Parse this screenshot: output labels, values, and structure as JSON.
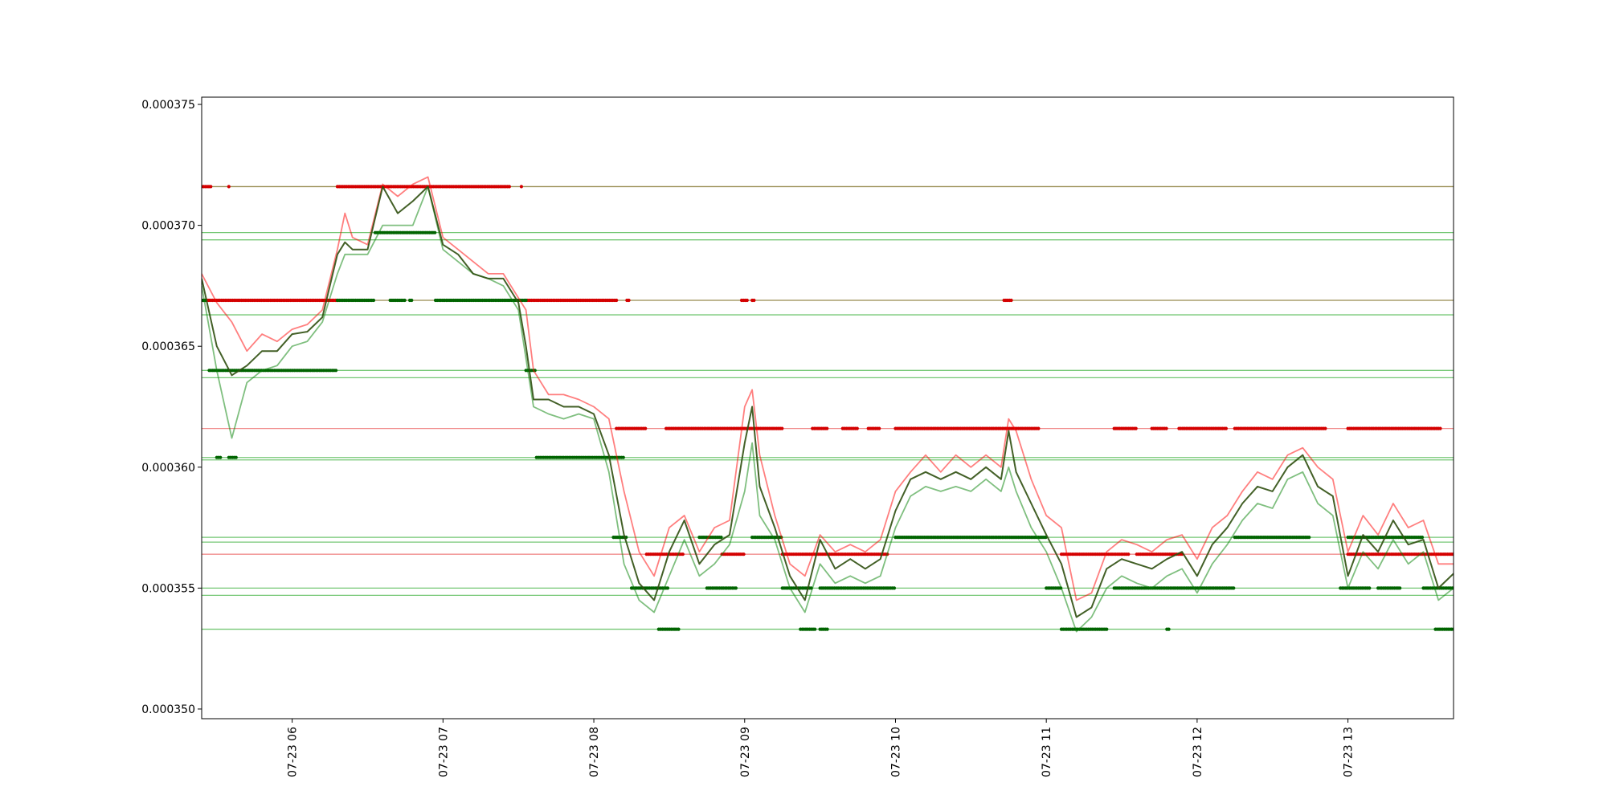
{
  "chart_data": {
    "type": "line",
    "title": "",
    "xlabel": "",
    "ylabel": "",
    "xlim": [
      5.4,
      13.7
    ],
    "ylim": [
      0.0003496,
      0.0003753
    ],
    "grid": false,
    "x_ticks": [
      {
        "value": 6,
        "label": "07-23 06"
      },
      {
        "value": 7,
        "label": "07-23 07"
      },
      {
        "value": 8,
        "label": "07-23 08"
      },
      {
        "value": 9,
        "label": "07-23 09"
      },
      {
        "value": 10,
        "label": "07-23 10"
      },
      {
        "value": 11,
        "label": "07-23 11"
      },
      {
        "value": 12,
        "label": "07-23 12"
      },
      {
        "value": 13,
        "label": "07-23 13"
      }
    ],
    "y_ticks": [
      {
        "value": 0.00035,
        "label": "0.000350"
      },
      {
        "value": 0.000355,
        "label": "0.000355"
      },
      {
        "value": 0.00036,
        "label": "0.000360"
      },
      {
        "value": 0.000365,
        "label": "0.000365"
      },
      {
        "value": 0.00037,
        "label": "0.000370"
      },
      {
        "value": 0.000375,
        "label": "0.000375"
      }
    ],
    "colors": {
      "red_line": "#ff0000",
      "green_line": "#008000",
      "close_line": "#2f4f10",
      "red_marker": "#d40000",
      "green_marker": "#006400",
      "olive_hline": "#8b7d3a",
      "red_hline": "#f08080",
      "green_hline": "#66c266"
    },
    "horizontal_levels": [
      {
        "y": 0.0003716,
        "color": "olive"
      },
      {
        "y": 0.0003669,
        "color": "olive"
      },
      {
        "y": 0.0003697,
        "color": "green"
      },
      {
        "y": 0.0003694,
        "color": "green"
      },
      {
        "y": 0.0003663,
        "color": "green"
      },
      {
        "y": 0.000364,
        "color": "green"
      },
      {
        "y": 0.0003637,
        "color": "green"
      },
      {
        "y": 0.0003616,
        "color": "red"
      },
      {
        "y": 0.0003604,
        "color": "green"
      },
      {
        "y": 0.0003603,
        "color": "green"
      },
      {
        "y": 0.0003571,
        "color": "green"
      },
      {
        "y": 0.0003569,
        "color": "green"
      },
      {
        "y": 0.0003564,
        "color": "red"
      },
      {
        "y": 0.000355,
        "color": "green"
      },
      {
        "y": 0.0003547,
        "color": "green"
      },
      {
        "y": 0.0003533,
        "color": "green"
      }
    ],
    "series": [
      {
        "role": "high",
        "color": "red",
        "x": [
          5.4,
          5.5,
          5.6,
          5.7,
          5.8,
          5.9,
          6.0,
          6.1,
          6.2,
          6.3,
          6.35,
          6.4,
          6.5,
          6.6,
          6.7,
          6.8,
          6.9,
          7.0,
          7.1,
          7.2,
          7.3,
          7.4,
          7.5,
          7.55,
          7.6,
          7.7,
          7.8,
          7.9,
          8.0,
          8.1,
          8.2,
          8.3,
          8.4,
          8.5,
          8.6,
          8.7,
          8.8,
          8.9,
          9.0,
          9.05,
          9.1,
          9.2,
          9.3,
          9.4,
          9.5,
          9.6,
          9.7,
          9.8,
          9.9,
          10.0,
          10.1,
          10.2,
          10.3,
          10.4,
          10.5,
          10.6,
          10.7,
          10.75,
          10.8,
          10.9,
          11.0,
          11.1,
          11.2,
          11.3,
          11.4,
          11.5,
          11.6,
          11.7,
          11.8,
          11.9,
          12.0,
          12.1,
          12.2,
          12.3,
          12.4,
          12.5,
          12.6,
          12.7,
          12.8,
          12.9,
          13.0,
          13.1,
          13.2,
          13.3,
          13.4,
          13.5,
          13.6,
          13.7
        ],
        "y": [
          0.000368,
          0.0003668,
          0.000366,
          0.0003648,
          0.0003655,
          0.0003652,
          0.0003657,
          0.0003659,
          0.0003665,
          0.000369,
          0.0003705,
          0.0003695,
          0.0003692,
          0.0003717,
          0.0003712,
          0.0003717,
          0.000372,
          0.0003695,
          0.000369,
          0.0003685,
          0.000368,
          0.000368,
          0.000367,
          0.0003665,
          0.000364,
          0.000363,
          0.000363,
          0.0003628,
          0.0003625,
          0.000362,
          0.000359,
          0.0003565,
          0.0003555,
          0.0003575,
          0.000358,
          0.0003565,
          0.0003575,
          0.0003578,
          0.0003625,
          0.0003632,
          0.0003605,
          0.000358,
          0.000356,
          0.0003555,
          0.0003572,
          0.0003565,
          0.0003568,
          0.0003565,
          0.000357,
          0.000359,
          0.0003598,
          0.0003605,
          0.0003598,
          0.0003605,
          0.00036,
          0.0003605,
          0.00036,
          0.000362,
          0.0003615,
          0.0003595,
          0.000358,
          0.0003575,
          0.0003545,
          0.0003548,
          0.0003565,
          0.000357,
          0.0003568,
          0.0003565,
          0.000357,
          0.0003572,
          0.0003562,
          0.0003575,
          0.000358,
          0.000359,
          0.0003598,
          0.0003595,
          0.0003605,
          0.0003608,
          0.00036,
          0.0003595,
          0.0003565,
          0.000358,
          0.0003572,
          0.0003585,
          0.0003575,
          0.0003578,
          0.000356,
          0.000356
        ]
      },
      {
        "role": "low",
        "color": "green",
        "x": [
          5.4,
          5.5,
          5.6,
          5.7,
          5.8,
          5.9,
          6.0,
          6.1,
          6.2,
          6.3,
          6.35,
          6.4,
          6.5,
          6.6,
          6.7,
          6.8,
          6.9,
          7.0,
          7.1,
          7.2,
          7.3,
          7.4,
          7.5,
          7.55,
          7.6,
          7.7,
          7.8,
          7.9,
          8.0,
          8.1,
          8.2,
          8.3,
          8.4,
          8.5,
          8.6,
          8.7,
          8.8,
          8.9,
          9.0,
          9.05,
          9.1,
          9.2,
          9.3,
          9.4,
          9.5,
          9.6,
          9.7,
          9.8,
          9.9,
          10.0,
          10.1,
          10.2,
          10.3,
          10.4,
          10.5,
          10.6,
          10.7,
          10.75,
          10.8,
          10.9,
          11.0,
          11.1,
          11.2,
          11.3,
          11.4,
          11.5,
          11.6,
          11.7,
          11.8,
          11.9,
          12.0,
          12.1,
          12.2,
          12.3,
          12.4,
          12.5,
          12.6,
          12.7,
          12.8,
          12.9,
          13.0,
          13.1,
          13.2,
          13.3,
          13.4,
          13.5,
          13.6,
          13.7
        ],
        "y": [
          0.0003675,
          0.000364,
          0.0003612,
          0.0003635,
          0.000364,
          0.0003642,
          0.000365,
          0.0003652,
          0.000366,
          0.000368,
          0.0003688,
          0.0003688,
          0.0003688,
          0.00037,
          0.00037,
          0.00037,
          0.0003716,
          0.000369,
          0.0003685,
          0.000368,
          0.0003678,
          0.0003675,
          0.0003665,
          0.0003645,
          0.0003625,
          0.0003622,
          0.000362,
          0.0003622,
          0.000362,
          0.0003598,
          0.000356,
          0.0003545,
          0.000354,
          0.0003555,
          0.000357,
          0.0003555,
          0.000356,
          0.0003568,
          0.000359,
          0.000361,
          0.000358,
          0.000357,
          0.000355,
          0.000354,
          0.000356,
          0.0003552,
          0.0003555,
          0.0003552,
          0.0003555,
          0.0003575,
          0.0003588,
          0.0003592,
          0.000359,
          0.0003592,
          0.000359,
          0.0003595,
          0.000359,
          0.00036,
          0.000359,
          0.0003575,
          0.0003565,
          0.000355,
          0.0003532,
          0.0003538,
          0.000355,
          0.0003555,
          0.0003552,
          0.000355,
          0.0003555,
          0.0003558,
          0.0003548,
          0.000356,
          0.0003568,
          0.0003578,
          0.0003585,
          0.0003583,
          0.0003595,
          0.0003598,
          0.0003585,
          0.000358,
          0.000355,
          0.0003565,
          0.0003558,
          0.000357,
          0.000356,
          0.0003565,
          0.0003545,
          0.000355
        ]
      },
      {
        "role": "close",
        "color": "dark",
        "x": [
          5.4,
          5.5,
          5.6,
          5.7,
          5.8,
          5.9,
          6.0,
          6.1,
          6.2,
          6.3,
          6.35,
          6.4,
          6.5,
          6.6,
          6.7,
          6.8,
          6.9,
          7.0,
          7.1,
          7.2,
          7.3,
          7.4,
          7.5,
          7.55,
          7.6,
          7.7,
          7.8,
          7.9,
          8.0,
          8.1,
          8.2,
          8.3,
          8.4,
          8.5,
          8.6,
          8.7,
          8.8,
          8.9,
          9.0,
          9.05,
          9.1,
          9.2,
          9.3,
          9.4,
          9.5,
          9.6,
          9.7,
          9.8,
          9.9,
          10.0,
          10.1,
          10.2,
          10.3,
          10.4,
          10.5,
          10.6,
          10.7,
          10.75,
          10.8,
          10.9,
          11.0,
          11.1,
          11.2,
          11.3,
          11.4,
          11.5,
          11.6,
          11.7,
          11.8,
          11.9,
          12.0,
          12.1,
          12.2,
          12.3,
          12.4,
          12.5,
          12.6,
          12.7,
          12.8,
          12.9,
          13.0,
          13.1,
          13.2,
          13.3,
          13.4,
          13.5,
          13.6,
          13.7
        ],
        "y": [
          0.0003678,
          0.000365,
          0.0003638,
          0.0003642,
          0.0003648,
          0.0003648,
          0.0003655,
          0.0003656,
          0.0003662,
          0.0003688,
          0.0003693,
          0.000369,
          0.000369,
          0.0003716,
          0.0003705,
          0.000371,
          0.0003716,
          0.0003692,
          0.0003688,
          0.000368,
          0.0003678,
          0.0003678,
          0.0003668,
          0.000365,
          0.0003628,
          0.0003628,
          0.0003625,
          0.0003625,
          0.0003622,
          0.0003605,
          0.0003572,
          0.0003552,
          0.0003545,
          0.0003565,
          0.0003578,
          0.000356,
          0.0003568,
          0.0003572,
          0.000361,
          0.0003625,
          0.0003592,
          0.0003575,
          0.0003555,
          0.0003545,
          0.000357,
          0.0003558,
          0.0003562,
          0.0003558,
          0.0003562,
          0.0003582,
          0.0003595,
          0.0003598,
          0.0003595,
          0.0003598,
          0.0003595,
          0.00036,
          0.0003595,
          0.0003615,
          0.0003598,
          0.0003585,
          0.0003572,
          0.000356,
          0.0003538,
          0.0003542,
          0.0003558,
          0.0003562,
          0.000356,
          0.0003558,
          0.0003562,
          0.0003565,
          0.0003555,
          0.0003568,
          0.0003575,
          0.0003585,
          0.0003592,
          0.000359,
          0.00036,
          0.0003605,
          0.0003592,
          0.0003588,
          0.0003555,
          0.0003572,
          0.0003565,
          0.0003578,
          0.0003568,
          0.000357,
          0.000355,
          0.0003556
        ]
      }
    ],
    "marker_bands": [
      {
        "color": "red",
        "y": 0.0003716,
        "segments": [
          [
            5.4,
            5.47
          ],
          [
            5.58,
            5.59
          ],
          [
            6.3,
            7.45
          ],
          [
            7.52,
            7.53
          ]
        ]
      },
      {
        "color": "red",
        "y": 0.0003669,
        "segments": [
          [
            5.4,
            6.3
          ],
          [
            7.55,
            8.15
          ],
          [
            8.22,
            8.24
          ],
          [
            8.98,
            9.02
          ],
          [
            9.05,
            9.07
          ],
          [
            10.72,
            10.77
          ]
        ]
      },
      {
        "color": "red",
        "y": 0.0003616,
        "segments": [
          [
            8.15,
            8.35
          ],
          [
            8.48,
            9.25
          ],
          [
            9.45,
            9.55
          ],
          [
            9.65,
            9.75
          ],
          [
            9.82,
            9.9
          ],
          [
            10.0,
            10.95
          ],
          [
            11.45,
            11.6
          ],
          [
            11.7,
            11.8
          ],
          [
            11.88,
            12.2
          ],
          [
            12.25,
            12.85
          ],
          [
            13.0,
            13.62
          ]
        ]
      },
      {
        "color": "red",
        "y": 0.0003564,
        "segments": [
          [
            8.35,
            8.6
          ],
          [
            8.85,
            9.0
          ],
          [
            9.25,
            9.95
          ],
          [
            11.1,
            11.55
          ],
          [
            11.6,
            11.9
          ],
          [
            13.0,
            13.7
          ]
        ]
      },
      {
        "color": "green",
        "y": 0.0003669,
        "segments": [
          [
            5.4,
            5.43
          ],
          [
            6.3,
            6.55
          ],
          [
            6.65,
            6.75
          ],
          [
            6.78,
            6.8
          ],
          [
            6.95,
            7.55
          ]
        ]
      },
      {
        "color": "green",
        "y": 0.0003697,
        "segments": [
          [
            6.55,
            6.95
          ]
        ]
      },
      {
        "color": "green",
        "y": 0.000364,
        "segments": [
          [
            5.45,
            6.3
          ],
          [
            7.55,
            7.62
          ]
        ]
      },
      {
        "color": "green",
        "y": 0.0003604,
        "segments": [
          [
            5.5,
            5.53
          ],
          [
            5.58,
            5.63
          ],
          [
            7.62,
            8.2
          ]
        ]
      },
      {
        "color": "green",
        "y": 0.0003571,
        "segments": [
          [
            8.13,
            8.22
          ],
          [
            8.7,
            8.85
          ],
          [
            9.05,
            9.25
          ],
          [
            10.0,
            11.0
          ],
          [
            12.25,
            12.75
          ],
          [
            13.0,
            13.5
          ]
        ]
      },
      {
        "color": "green",
        "y": 0.000355,
        "segments": [
          [
            8.25,
            8.5
          ],
          [
            8.75,
            8.95
          ],
          [
            9.25,
            9.45
          ],
          [
            9.5,
            10.0
          ],
          [
            11.0,
            11.1
          ],
          [
            11.45,
            12.25
          ],
          [
            12.95,
            13.15
          ],
          [
            13.2,
            13.35
          ],
          [
            13.5,
            13.7
          ]
        ]
      },
      {
        "color": "green",
        "y": 0.0003533,
        "segments": [
          [
            8.43,
            8.57
          ],
          [
            9.37,
            9.47
          ],
          [
            9.5,
            9.55
          ],
          [
            11.1,
            11.4
          ],
          [
            11.8,
            11.82
          ],
          [
            13.58,
            13.7
          ]
        ]
      }
    ]
  }
}
